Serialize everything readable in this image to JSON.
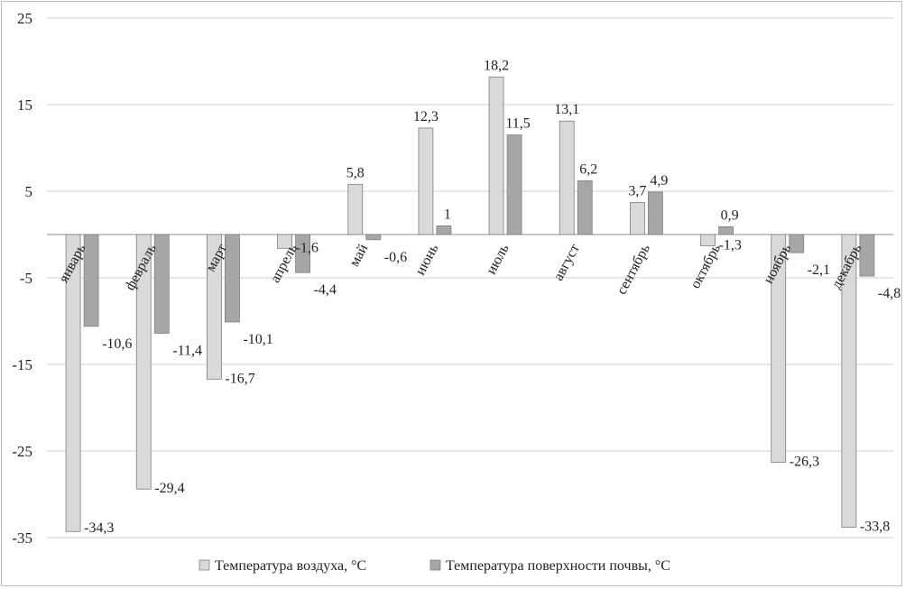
{
  "chart_data": {
    "type": "bar",
    "categories": [
      "январь",
      "февраль",
      "март",
      "апрель",
      "май",
      "июнь",
      "июль",
      "август",
      "сентябрь",
      "октябрь",
      "ноябрь",
      "декабрь"
    ],
    "series": [
      {
        "name": "Температура воздуха, °С",
        "color": "#d9d9d9",
        "values": [
          -34.3,
          -29.4,
          -16.7,
          -1.6,
          5.8,
          12.3,
          18.2,
          13.1,
          3.7,
          -1.3,
          -26.3,
          -33.8
        ],
        "labels": [
          "-34,3",
          "-29,4",
          "-16,7",
          "-1,6",
          "5,8",
          "12,3",
          "18,2",
          "13,1",
          "3,7",
          "-1,3",
          "-26,3",
          "-33,8"
        ]
      },
      {
        "name": "Температура поверхности почвы, °С",
        "color": "#a6a6a6",
        "values": [
          -10.6,
          -11.4,
          -10.1,
          -4.4,
          -0.6,
          1,
          11.5,
          6.2,
          4.9,
          0.9,
          -2.1,
          -4.8
        ],
        "labels": [
          "-10,6",
          "-11,4",
          "-10,1",
          "-4,4",
          "-0,6",
          "1",
          "11,5",
          "6,2",
          "4,9",
          "0,9",
          "-2,1",
          "-4,8"
        ]
      }
    ],
    "yticks": [
      "25",
      "15",
      "5",
      "-5",
      "-15",
      "-25",
      "-35"
    ],
    "ylim": [
      -35,
      25
    ],
    "grid": true,
    "legend_position": "bottom"
  }
}
